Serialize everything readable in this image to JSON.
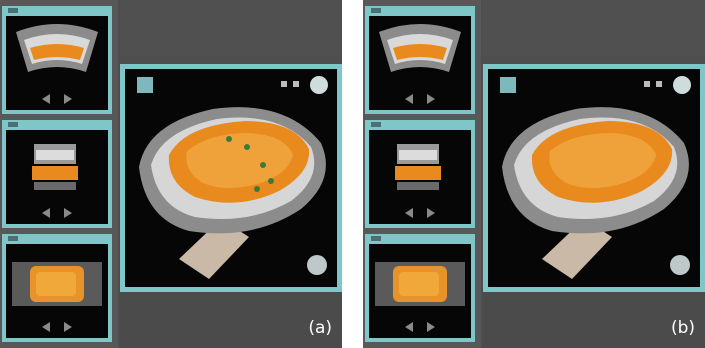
{
  "panels": [
    {
      "id": "a",
      "label": "(a)"
    },
    {
      "id": "b",
      "label": "(b)"
    }
  ],
  "icons": {
    "nav_prev": "triangle-left-icon",
    "nav_next": "triangle-right-icon",
    "volume_view": "3d-volume-icon",
    "orientation": "orientation-cube-icon"
  },
  "colors": {
    "frame_border": "#7fc6c9",
    "viewport_bg": "#060606",
    "ui_background": "#4e4e4e",
    "overlay_orange": "#e88a1e",
    "marker_green": "#3a7a3a"
  }
}
